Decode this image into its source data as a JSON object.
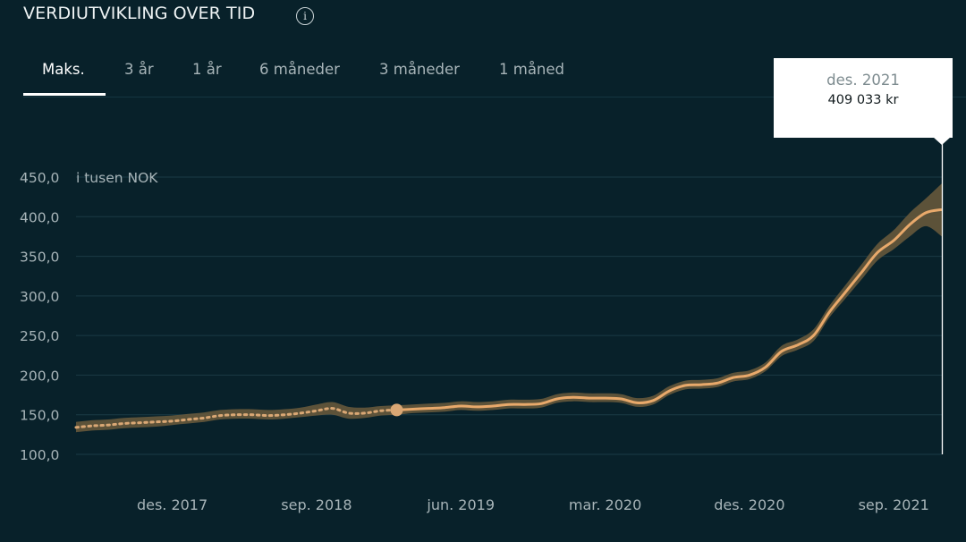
{
  "header": {
    "title": "VERDIUTVIKLING OVER TID",
    "info_icon": "info-circle-icon"
  },
  "tabs": [
    {
      "label": "Maks.",
      "active": true
    },
    {
      "label": "3 år",
      "active": false
    },
    {
      "label": "1 år",
      "active": false
    },
    {
      "label": "6 måneder",
      "active": false
    },
    {
      "label": "3 måneder",
      "active": false
    },
    {
      "label": "1 måned",
      "active": false
    }
  ],
  "tooltip": {
    "date": "des. 2021",
    "value": "409 033 kr"
  },
  "colors": {
    "background": "#08212a",
    "line": "#e8a96b",
    "band": "#6b5a3c",
    "grid": "#1a3a45",
    "text_muted": "#a7b4b8"
  },
  "chart_data": {
    "type": "line",
    "ylabel": "i tusen NOK",
    "ylim": [
      100,
      450
    ],
    "yticks": [
      "450,0",
      "400,0",
      "350,0",
      "300,0",
      "250,0",
      "200,0",
      "150,0",
      "100,0"
    ],
    "ytick_values": [
      450,
      400,
      350,
      300,
      250,
      200,
      150,
      100
    ],
    "xticks": [
      "des. 2017",
      "sep. 2018",
      "jun. 2019",
      "mar. 2020",
      "des. 2020",
      "sep. 2021"
    ],
    "grid": true,
    "historical_until": "feb. 2019",
    "series": [
      {
        "x": [
          "jun. 2017",
          "jul. 2017",
          "aug. 2017",
          "sep. 2017",
          "okt. 2017",
          "nov. 2017",
          "des. 2017",
          "jan. 2018",
          "feb. 2018",
          "mar. 2018",
          "apr. 2018",
          "mai 2018",
          "jun. 2018",
          "jul. 2018",
          "aug. 2018",
          "sep. 2018",
          "okt. 2018",
          "nov. 2018",
          "des. 2018",
          "jan. 2019",
          "feb. 2019",
          "mar. 2019",
          "apr. 2019",
          "mai 2019",
          "jun. 2019",
          "jul. 2019",
          "aug. 2019",
          "sep. 2019",
          "okt. 2019",
          "nov. 2019",
          "des. 2019",
          "jan. 2020",
          "feb. 2020",
          "mar. 2020",
          "apr. 2020",
          "mai 2020",
          "jun. 2020",
          "jul. 2020",
          "aug. 2020",
          "sep. 2020",
          "okt. 2020",
          "nov. 2020",
          "des. 2020",
          "jan. 2021",
          "feb. 2021",
          "mar. 2021",
          "apr. 2021",
          "mai 2021",
          "jun. 2021",
          "jul. 2021",
          "aug. 2021",
          "sep. 2021",
          "okt. 2021",
          "nov. 2021",
          "des. 2021"
        ],
        "values": [
          134,
          136,
          137,
          139,
          140,
          141,
          142,
          144,
          146,
          149,
          150,
          150,
          149,
          150,
          152,
          155,
          158,
          152,
          152,
          155,
          156,
          157,
          158,
          159,
          161,
          160,
          161,
          163,
          163,
          164,
          170,
          172,
          171,
          171,
          170,
          165,
          168,
          180,
          187,
          188,
          190,
          197,
          200,
          210,
          230,
          238,
          250,
          280,
          305,
          330,
          355,
          370,
          390,
          405,
          409
        ],
        "lower": [
          128,
          130,
          131,
          133,
          134,
          135,
          137,
          139,
          141,
          144,
          145,
          145,
          144,
          145,
          147,
          149,
          150,
          145,
          146,
          149,
          150,
          152,
          153,
          154,
          156,
          155,
          156,
          158,
          158,
          159,
          165,
          167,
          166,
          166,
          165,
          160,
          163,
          175,
          182,
          183,
          185,
          192,
          195,
          205,
          224,
          232,
          243,
          273,
          297,
          321,
          345,
          359,
          375,
          388,
          375
        ],
        "upper": [
          141,
          143,
          144,
          146,
          147,
          148,
          149,
          151,
          153,
          156,
          157,
          157,
          156,
          157,
          159,
          163,
          166,
          160,
          159,
          161,
          162,
          163,
          164,
          165,
          167,
          166,
          167,
          169,
          169,
          170,
          176,
          178,
          177,
          177,
          176,
          171,
          174,
          186,
          193,
          194,
          196,
          203,
          206,
          216,
          237,
          245,
          258,
          288,
          314,
          340,
          366,
          383,
          405,
          423,
          442
        ]
      }
    ]
  }
}
